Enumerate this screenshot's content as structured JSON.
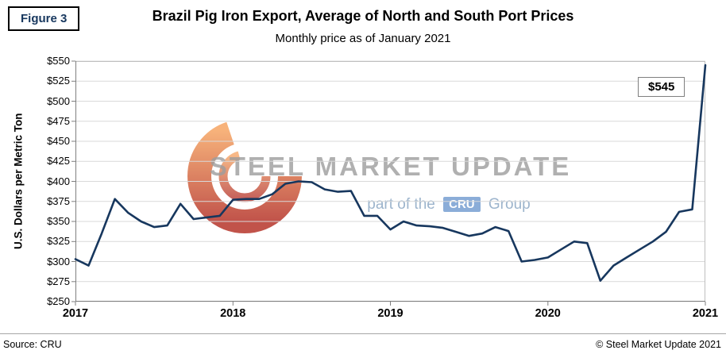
{
  "figure_label": "Figure 3",
  "title": "Brazil Pig Iron Export, Average of North and South Port Prices",
  "subtitle": "Monthly price as of January 2021",
  "watermark": {
    "main": "STEEL MARKET UPDATE",
    "sub_prefix": "part of the",
    "sub_box": "CRU",
    "sub_suffix": "Group",
    "logo_color_top": "#f59d56",
    "logo_color_bottom": "#b02318"
  },
  "footer": {
    "source": "Source: CRU",
    "copyright": "© Steel Market Update 2021"
  },
  "chart_data": {
    "type": "line",
    "title": "Brazil Pig Iron Export, Average of North and South Port Prices",
    "subtitle": "Monthly price as of January 2021",
    "ylabel": "U.S. Dollars per Metric Ton",
    "ylim": [
      250,
      550
    ],
    "ytick_step": 25,
    "ytick_prefix": "$",
    "x_tick_labels": [
      "2017",
      "2018",
      "2019",
      "2020",
      "2021"
    ],
    "x_frequency": "monthly",
    "x_start": "2017-01",
    "x_end": "2021-01",
    "grid": true,
    "grid_color": "#d9d9d9",
    "line_color": "#17375e",
    "values": [
      303,
      295,
      335,
      378,
      361,
      350,
      343,
      345,
      372,
      353,
      355,
      357,
      377,
      378,
      378,
      384,
      397,
      400,
      399,
      390,
      387,
      388,
      357,
      357,
      340,
      350,
      345,
      344,
      342,
      337,
      332,
      335,
      343,
      338,
      300,
      302,
      305,
      315,
      325,
      323,
      276,
      295,
      305,
      315,
      325,
      337,
      362,
      365,
      545
    ],
    "annotation": {
      "label": "$545",
      "target_x": "2021-01",
      "target_value": 545
    }
  }
}
